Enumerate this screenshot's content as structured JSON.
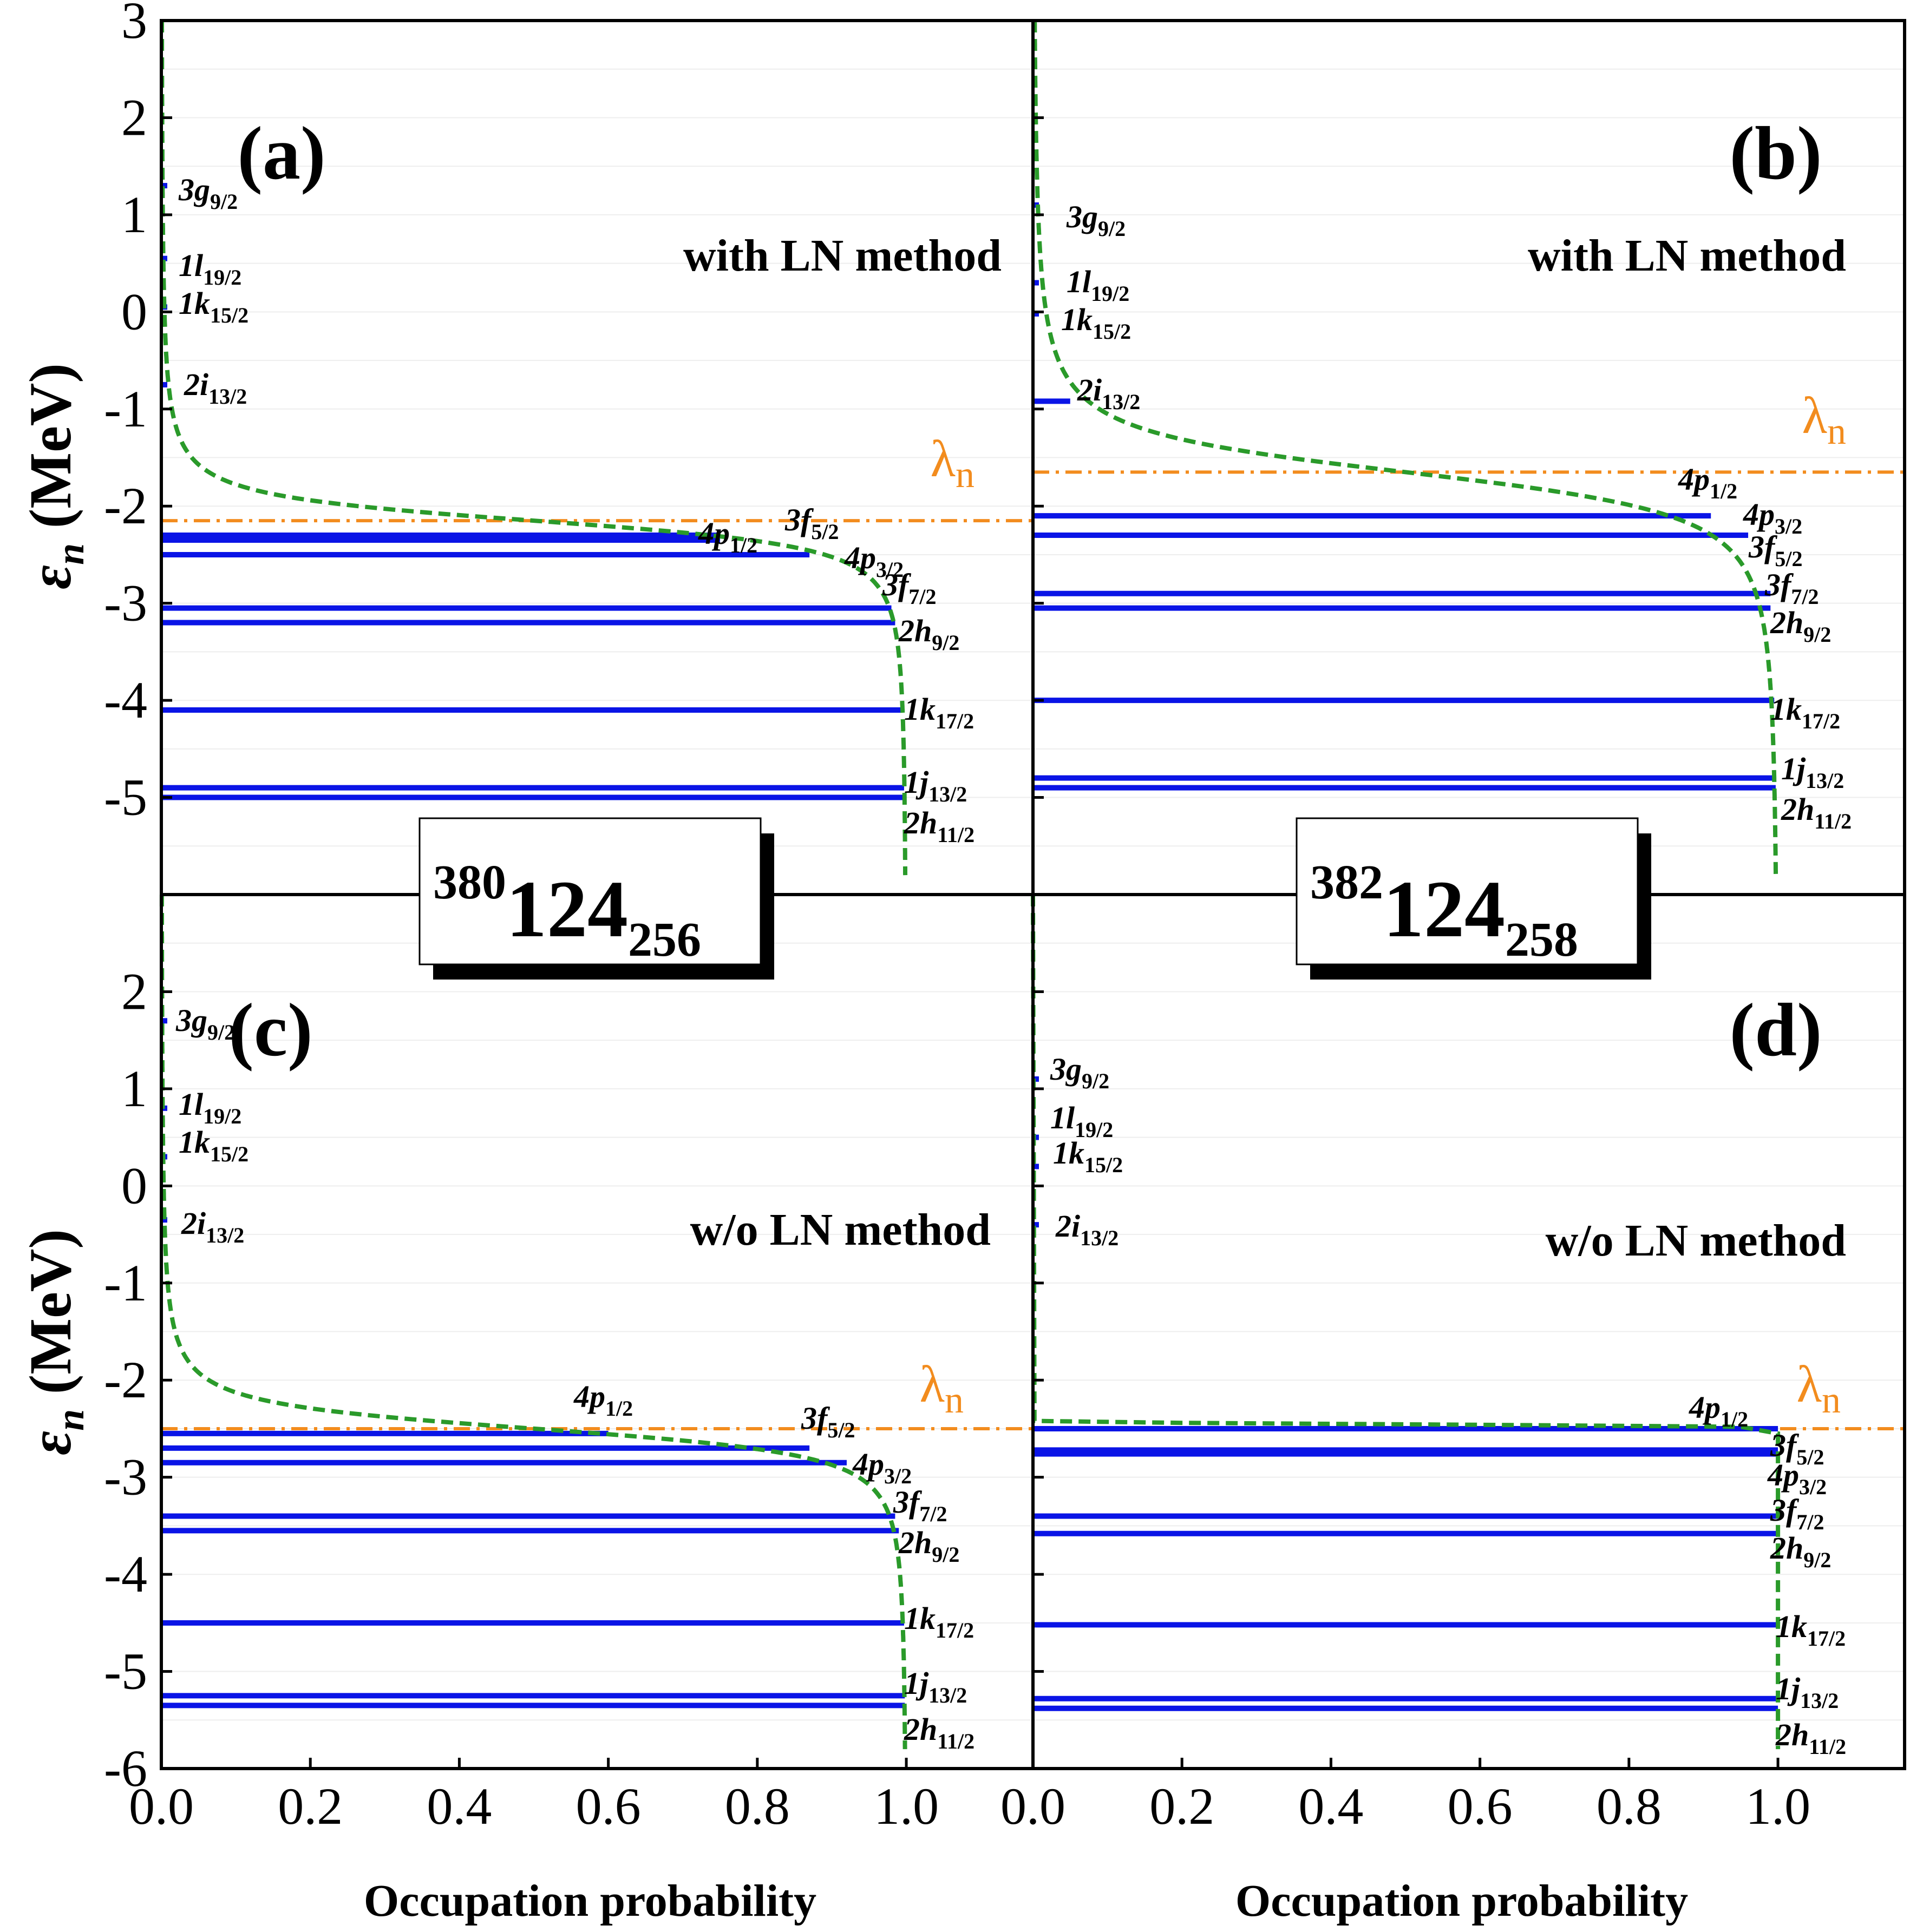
{
  "x_axis_title": "Occupation probability",
  "y_axis_title": "(MeV)",
  "y_axis_symbol": "ε",
  "y_axis_symbol_sub": "n",
  "lambda_symbol": "λ",
  "lambda_sub": "n",
  "x_ticks": [
    "0.0",
    "0.2",
    "0.4",
    "0.6",
    "0.8",
    "1.0"
  ],
  "y_ticks_top": [
    "3",
    "2",
    "1",
    "0",
    "-1",
    "-2",
    "-3",
    "-4",
    "-5"
  ],
  "y_ticks_bottom": [
    "2",
    "1",
    "0",
    "-1",
    "-2",
    "-3",
    "-4",
    "-5",
    "-6"
  ],
  "nuclei": [
    {
      "mass": "380",
      "element": "124",
      "neutrons": "256"
    },
    {
      "mass": "382",
      "element": "124",
      "neutrons": "258"
    }
  ],
  "colors": {
    "levels": "#0a14e6",
    "fermi_curve": "#2a9a2a",
    "lambda_line": "#f28c1e",
    "axis": "#000000"
  },
  "chart_data": [
    {
      "panel": "(a)",
      "type": "line",
      "nucleus": "380 124 256",
      "method": "with LN method",
      "xlabel": "Occupation probability",
      "ylabel": "εn (MeV)",
      "xlim": [
        0.0,
        1.17
      ],
      "ylim": [
        -6,
        3
      ],
      "lambda_n": -2.15,
      "curve": "green dashed: occupation vs single-particle energy",
      "levels": [
        {
          "label": "3g",
          "sub": "9/2",
          "energy": 1.3,
          "occupation": 0.003
        },
        {
          "label": "1l",
          "sub": "19/2",
          "energy": 0.55,
          "occupation": 0.004
        },
        {
          "label": "1k",
          "sub": "15/2",
          "energy": 0.05,
          "occupation": 0.005
        },
        {
          "label": "2i",
          "sub": "13/2",
          "energy": -0.75,
          "occupation": 0.006
        },
        {
          "label": "4p",
          "sub": "1/2",
          "energy": -2.3,
          "occupation": 0.75
        },
        {
          "label": "3f",
          "sub": "5/2",
          "energy": -2.35,
          "occupation": 0.75
        },
        {
          "label": "4p",
          "sub": "3/2",
          "energy": -2.5,
          "occupation": 0.87
        },
        {
          "label": "3f",
          "sub": "7/2",
          "energy": -3.05,
          "occupation": 0.98
        },
        {
          "label": "2h",
          "sub": "9/2",
          "energy": -3.2,
          "occupation": 0.985
        },
        {
          "label": "1k",
          "sub": "17/2",
          "energy": -4.1,
          "occupation": 0.995
        },
        {
          "label": "1j",
          "sub": "13/2",
          "energy": -4.9,
          "occupation": 0.997
        },
        {
          "label": "2h",
          "sub": "11/2",
          "energy": -5.0,
          "occupation": 0.997
        }
      ],
      "label_text": [
        {
          "label": "3g",
          "sub": "9/2"
        },
        {
          "label": "1l",
          "sub": "19/2"
        },
        {
          "label": "1k",
          "sub": "15/2"
        },
        {
          "label": "2i",
          "sub": "13/2"
        },
        {
          "label": "4p",
          "sub": "1/2"
        },
        {
          "label": "3f",
          "sub": "5/2"
        },
        {
          "label": "4p",
          "sub": "3/2"
        },
        {
          "label": "3f",
          "sub": "7/2"
        },
        {
          "label": "2h",
          "sub": "9/2"
        },
        {
          "label": "1k",
          "sub": "17/2"
        },
        {
          "label": "1j",
          "sub": "13/2"
        },
        {
          "label": "2h",
          "sub": "11/2"
        }
      ]
    },
    {
      "panel": "(b)",
      "type": "line",
      "nucleus": "382 124 258",
      "method": "with LN method",
      "xlabel": "Occupation probability",
      "ylabel": "εn (MeV)",
      "xlim": [
        0.0,
        1.17
      ],
      "ylim": [
        -6,
        3
      ],
      "lambda_n": -1.65,
      "curve": "green dashed: occupation vs single-particle energy",
      "levels": [
        {
          "label": "3g",
          "sub": "9/2",
          "energy": 1.1,
          "occupation": 0.003
        },
        {
          "label": "1l",
          "sub": "19/2",
          "energy": 0.3,
          "occupation": 0.004
        },
        {
          "label": "1k",
          "sub": "15/2",
          "energy": -0.02,
          "occupation": 0.006
        },
        {
          "label": "2i",
          "sub": "13/2",
          "energy": -0.92,
          "occupation": 0.05
        },
        {
          "label": "4p",
          "sub": "1/2",
          "energy": -2.1,
          "occupation": 0.91
        },
        {
          "label": "4p",
          "sub": "3/2",
          "energy": -2.3,
          "occupation": 0.96
        },
        {
          "label": "3f",
          "sub": "5/2",
          "energy": -2.3,
          "occupation": 0.96
        },
        {
          "label": "3f",
          "sub": "7/2",
          "energy": -2.9,
          "occupation": 0.99
        },
        {
          "label": "2h",
          "sub": "9/2",
          "energy": -3.05,
          "occupation": 0.99
        },
        {
          "label": "1k",
          "sub": "17/2",
          "energy": -4.0,
          "occupation": 0.995
        },
        {
          "label": "1j",
          "sub": "13/2",
          "energy": -4.8,
          "occupation": 0.997
        },
        {
          "label": "2h",
          "sub": "11/2",
          "energy": -4.9,
          "occupation": 0.997
        }
      ],
      "label_text": [
        {
          "label": "3g",
          "sub": "9/2"
        },
        {
          "label": "1l",
          "sub": "19/2"
        },
        {
          "label": "1k",
          "sub": "15/2"
        },
        {
          "label": "2i",
          "sub": "13/2"
        },
        {
          "label": "4p",
          "sub": "1/2"
        },
        {
          "label": "4p",
          "sub": "3/2"
        },
        {
          "label": "3f",
          "sub": "5/2"
        },
        {
          "label": "3f",
          "sub": "7/2"
        },
        {
          "label": "2h",
          "sub": "9/2"
        },
        {
          "label": "1k",
          "sub": "17/2"
        },
        {
          "label": "1j",
          "sub": "13/2"
        },
        {
          "label": "2h",
          "sub": "11/2"
        }
      ]
    },
    {
      "panel": "(c)",
      "type": "line",
      "nucleus": "380 124 256",
      "method": "w/o LN method",
      "xlabel": "Occupation probability",
      "ylabel": "εn (MeV)",
      "xlim": [
        0.0,
        1.17
      ],
      "ylim": [
        -6,
        3
      ],
      "lambda_n": -2.5,
      "curve": "green dashed: occupation vs single-particle energy",
      "levels": [
        {
          "label": "3g",
          "sub": "9/2",
          "energy": 1.7,
          "occupation": 0.002
        },
        {
          "label": "1l",
          "sub": "19/2",
          "energy": 0.8,
          "occupation": 0.003
        },
        {
          "label": "1k",
          "sub": "15/2",
          "energy": 0.3,
          "occupation": 0.003
        },
        {
          "label": "2i",
          "sub": "13/2",
          "energy": -0.35,
          "occupation": 0.004
        },
        {
          "label": "4p",
          "sub": "1/2",
          "energy": -2.55,
          "occupation": 0.6
        },
        {
          "label": "3f",
          "sub": "5/2",
          "energy": -2.7,
          "occupation": 0.87
        },
        {
          "label": "4p",
          "sub": "3/2",
          "energy": -2.85,
          "occupation": 0.92
        },
        {
          "label": "3f",
          "sub": "7/2",
          "energy": -3.4,
          "occupation": 0.985
        },
        {
          "label": "2h",
          "sub": "9/2",
          "energy": -3.55,
          "occupation": 0.99
        },
        {
          "label": "1k",
          "sub": "17/2",
          "energy": -4.5,
          "occupation": 0.997
        },
        {
          "label": "1j",
          "sub": "13/2",
          "energy": -5.25,
          "occupation": 0.998
        },
        {
          "label": "2h",
          "sub": "11/2",
          "energy": -5.35,
          "occupation": 0.998
        }
      ],
      "label_text": [
        {
          "label": "3g",
          "sub": "9/2"
        },
        {
          "label": "1l",
          "sub": "19/2"
        },
        {
          "label": "1k",
          "sub": "15/2"
        },
        {
          "label": "2i",
          "sub": "13/2"
        },
        {
          "label": "4p",
          "sub": "1/2"
        },
        {
          "label": "3f",
          "sub": "5/2"
        },
        {
          "label": "4p",
          "sub": "3/2"
        },
        {
          "label": "3f",
          "sub": "7/2"
        },
        {
          "label": "2h",
          "sub": "9/2"
        },
        {
          "label": "1k",
          "sub": "17/2"
        },
        {
          "label": "1j",
          "sub": "13/2"
        },
        {
          "label": "2h",
          "sub": "11/2"
        }
      ]
    },
    {
      "panel": "(d)",
      "type": "line",
      "nucleus": "382 124 258",
      "method": "w/o LN method",
      "xlabel": "Occupation probability",
      "ylabel": "εn (MeV)",
      "xlim": [
        0.0,
        1.17
      ],
      "ylim": [
        -6,
        3
      ],
      "lambda_n": -2.5,
      "curve": "green dashed: occupation vs single-particle energy",
      "levels": [
        {
          "label": "3g",
          "sub": "9/2",
          "energy": 1.1,
          "occupation": 0.0
        },
        {
          "label": "1l",
          "sub": "19/2",
          "energy": 0.5,
          "occupation": 0.0
        },
        {
          "label": "1k",
          "sub": "15/2",
          "energy": 0.2,
          "occupation": 0.0
        },
        {
          "label": "2i",
          "sub": "13/2",
          "energy": -0.4,
          "occupation": 0.0
        },
        {
          "label": "4p",
          "sub": "1/2",
          "energy": -2.5,
          "occupation": 1.0
        },
        {
          "label": "3f",
          "sub": "5/2",
          "energy": -2.72,
          "occupation": 1.0
        },
        {
          "label": "4p",
          "sub": "3/2",
          "energy": -2.76,
          "occupation": 1.0
        },
        {
          "label": "3f",
          "sub": "7/2",
          "energy": -3.4,
          "occupation": 1.0
        },
        {
          "label": "2h",
          "sub": "9/2",
          "energy": -3.58,
          "occupation": 1.0
        },
        {
          "label": "1k",
          "sub": "17/2",
          "energy": -4.52,
          "occupation": 1.0
        },
        {
          "label": "1j",
          "sub": "13/2",
          "energy": -5.28,
          "occupation": 1.0
        },
        {
          "label": "2h",
          "sub": "11/2",
          "energy": -5.38,
          "occupation": 1.0
        }
      ],
      "label_text": [
        {
          "label": "3g",
          "sub": "9/2"
        },
        {
          "label": "1l",
          "sub": "19/2"
        },
        {
          "label": "1k",
          "sub": "15/2"
        },
        {
          "label": "2i",
          "sub": "13/2"
        },
        {
          "label": "4p",
          "sub": "1/2"
        },
        {
          "label": "3f",
          "sub": "5/2"
        },
        {
          "label": "4p",
          "sub": "3/2"
        },
        {
          "label": "3f",
          "sub": "7/2"
        },
        {
          "label": "2h",
          "sub": "9/2"
        },
        {
          "label": "1k",
          "sub": "17/2"
        },
        {
          "label": "1j",
          "sub": "13/2"
        },
        {
          "label": "2h",
          "sub": "11/2"
        }
      ]
    }
  ]
}
